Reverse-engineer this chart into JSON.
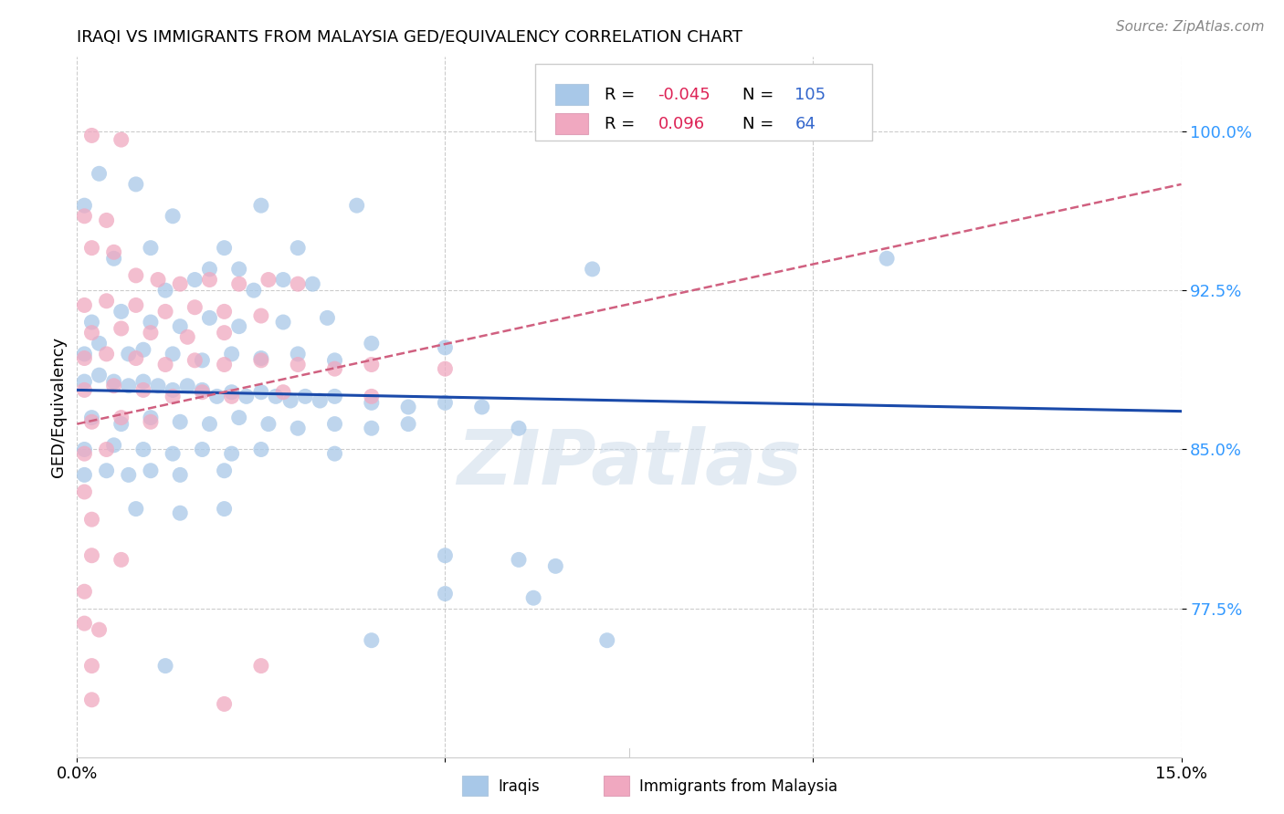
{
  "title": "IRAQI VS IMMIGRANTS FROM MALAYSIA GED/EQUIVALENCY CORRELATION CHART",
  "source": "Source: ZipAtlas.com",
  "ylabel": "GED/Equivalency",
  "yticks": [
    0.775,
    0.85,
    0.925,
    1.0
  ],
  "ytick_labels": [
    "77.5%",
    "85.0%",
    "92.5%",
    "100.0%"
  ],
  "xmin": 0.0,
  "xmax": 0.15,
  "ymin": 0.705,
  "ymax": 1.035,
  "watermark": "ZIPatlas",
  "legend_R_iraqis": "-0.045",
  "legend_N_iraqis": "105",
  "legend_R_malaysia": "0.096",
  "legend_N_malaysia": "64",
  "iraqis_color": "#a8c8e8",
  "malaysia_color": "#f0a8c0",
  "iraqis_line_color": "#1a4aaa",
  "malaysia_line_color": "#d06080",
  "iraq_line_x0": 0.0,
  "iraq_line_x1": 0.15,
  "iraq_line_y0": 0.878,
  "iraq_line_y1": 0.868,
  "malay_line_x0": 0.0,
  "malay_line_x1": 0.15,
  "malay_line_y0": 0.862,
  "malay_line_y1": 0.975,
  "iraqis_scatter": [
    [
      0.001,
      0.965
    ],
    [
      0.003,
      0.98
    ],
    [
      0.008,
      0.975
    ],
    [
      0.013,
      0.96
    ],
    [
      0.025,
      0.965
    ],
    [
      0.038,
      0.965
    ],
    [
      0.005,
      0.94
    ],
    [
      0.01,
      0.945
    ],
    [
      0.02,
      0.945
    ],
    [
      0.03,
      0.945
    ],
    [
      0.018,
      0.935
    ],
    [
      0.022,
      0.935
    ],
    [
      0.028,
      0.93
    ],
    [
      0.012,
      0.925
    ],
    [
      0.016,
      0.93
    ],
    [
      0.024,
      0.925
    ],
    [
      0.032,
      0.928
    ],
    [
      0.07,
      0.935
    ],
    [
      0.11,
      0.94
    ],
    [
      0.002,
      0.91
    ],
    [
      0.006,
      0.915
    ],
    [
      0.01,
      0.91
    ],
    [
      0.014,
      0.908
    ],
    [
      0.018,
      0.912
    ],
    [
      0.022,
      0.908
    ],
    [
      0.028,
      0.91
    ],
    [
      0.034,
      0.912
    ],
    [
      0.04,
      0.9
    ],
    [
      0.05,
      0.898
    ],
    [
      0.001,
      0.895
    ],
    [
      0.003,
      0.9
    ],
    [
      0.007,
      0.895
    ],
    [
      0.009,
      0.897
    ],
    [
      0.013,
      0.895
    ],
    [
      0.017,
      0.892
    ],
    [
      0.021,
      0.895
    ],
    [
      0.025,
      0.893
    ],
    [
      0.03,
      0.895
    ],
    [
      0.035,
      0.892
    ],
    [
      0.001,
      0.882
    ],
    [
      0.003,
      0.885
    ],
    [
      0.005,
      0.882
    ],
    [
      0.007,
      0.88
    ],
    [
      0.009,
      0.882
    ],
    [
      0.011,
      0.88
    ],
    [
      0.013,
      0.878
    ],
    [
      0.015,
      0.88
    ],
    [
      0.017,
      0.878
    ],
    [
      0.019,
      0.875
    ],
    [
      0.021,
      0.877
    ],
    [
      0.023,
      0.875
    ],
    [
      0.025,
      0.877
    ],
    [
      0.027,
      0.875
    ],
    [
      0.029,
      0.873
    ],
    [
      0.031,
      0.875
    ],
    [
      0.033,
      0.873
    ],
    [
      0.035,
      0.875
    ],
    [
      0.04,
      0.872
    ],
    [
      0.045,
      0.87
    ],
    [
      0.05,
      0.872
    ],
    [
      0.055,
      0.87
    ],
    [
      0.002,
      0.865
    ],
    [
      0.006,
      0.862
    ],
    [
      0.01,
      0.865
    ],
    [
      0.014,
      0.863
    ],
    [
      0.018,
      0.862
    ],
    [
      0.022,
      0.865
    ],
    [
      0.026,
      0.862
    ],
    [
      0.03,
      0.86
    ],
    [
      0.035,
      0.862
    ],
    [
      0.04,
      0.86
    ],
    [
      0.045,
      0.862
    ],
    [
      0.06,
      0.86
    ],
    [
      0.001,
      0.85
    ],
    [
      0.005,
      0.852
    ],
    [
      0.009,
      0.85
    ],
    [
      0.013,
      0.848
    ],
    [
      0.017,
      0.85
    ],
    [
      0.021,
      0.848
    ],
    [
      0.025,
      0.85
    ],
    [
      0.035,
      0.848
    ],
    [
      0.001,
      0.838
    ],
    [
      0.004,
      0.84
    ],
    [
      0.007,
      0.838
    ],
    [
      0.01,
      0.84
    ],
    [
      0.014,
      0.838
    ],
    [
      0.02,
      0.84
    ],
    [
      0.008,
      0.822
    ],
    [
      0.014,
      0.82
    ],
    [
      0.02,
      0.822
    ],
    [
      0.05,
      0.8
    ],
    [
      0.06,
      0.798
    ],
    [
      0.065,
      0.795
    ],
    [
      0.05,
      0.782
    ],
    [
      0.062,
      0.78
    ],
    [
      0.04,
      0.76
    ],
    [
      0.072,
      0.76
    ],
    [
      0.012,
      0.748
    ]
  ],
  "malaysia_scatter": [
    [
      0.002,
      0.998
    ],
    [
      0.006,
      0.996
    ],
    [
      0.001,
      0.96
    ],
    [
      0.004,
      0.958
    ],
    [
      0.002,
      0.945
    ],
    [
      0.005,
      0.943
    ],
    [
      0.008,
      0.932
    ],
    [
      0.011,
      0.93
    ],
    [
      0.014,
      0.928
    ],
    [
      0.018,
      0.93
    ],
    [
      0.022,
      0.928
    ],
    [
      0.026,
      0.93
    ],
    [
      0.03,
      0.928
    ],
    [
      0.001,
      0.918
    ],
    [
      0.004,
      0.92
    ],
    [
      0.008,
      0.918
    ],
    [
      0.012,
      0.915
    ],
    [
      0.016,
      0.917
    ],
    [
      0.02,
      0.915
    ],
    [
      0.025,
      0.913
    ],
    [
      0.002,
      0.905
    ],
    [
      0.006,
      0.907
    ],
    [
      0.01,
      0.905
    ],
    [
      0.015,
      0.903
    ],
    [
      0.02,
      0.905
    ],
    [
      0.001,
      0.893
    ],
    [
      0.004,
      0.895
    ],
    [
      0.008,
      0.893
    ],
    [
      0.012,
      0.89
    ],
    [
      0.016,
      0.892
    ],
    [
      0.02,
      0.89
    ],
    [
      0.025,
      0.892
    ],
    [
      0.03,
      0.89
    ],
    [
      0.035,
      0.888
    ],
    [
      0.04,
      0.89
    ],
    [
      0.05,
      0.888
    ],
    [
      0.001,
      0.878
    ],
    [
      0.005,
      0.88
    ],
    [
      0.009,
      0.878
    ],
    [
      0.013,
      0.875
    ],
    [
      0.017,
      0.877
    ],
    [
      0.021,
      0.875
    ],
    [
      0.028,
      0.877
    ],
    [
      0.04,
      0.875
    ],
    [
      0.002,
      0.863
    ],
    [
      0.006,
      0.865
    ],
    [
      0.01,
      0.863
    ],
    [
      0.001,
      0.848
    ],
    [
      0.004,
      0.85
    ],
    [
      0.001,
      0.83
    ],
    [
      0.002,
      0.817
    ],
    [
      0.002,
      0.8
    ],
    [
      0.006,
      0.798
    ],
    [
      0.001,
      0.783
    ],
    [
      0.001,
      0.768
    ],
    [
      0.003,
      0.765
    ],
    [
      0.002,
      0.748
    ],
    [
      0.025,
      0.748
    ],
    [
      0.002,
      0.732
    ],
    [
      0.02,
      0.73
    ]
  ]
}
